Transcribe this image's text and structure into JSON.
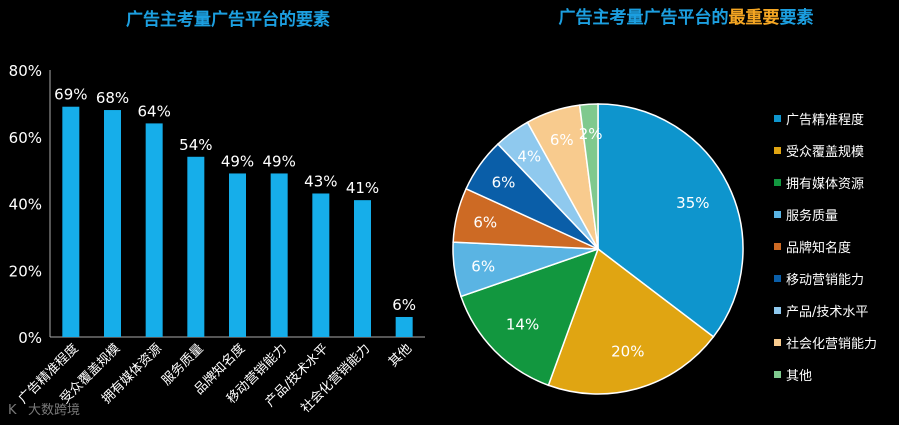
{
  "chart_data": [
    {
      "type": "bar",
      "title": "广告主考量广告平台的要素",
      "categories": [
        "广告精准程度",
        "受众覆盖规模",
        "拥有媒体资源",
        "服务质量",
        "品牌知名度",
        "移动营销能力",
        "产品/技术水平",
        "社会化营销能力",
        "其他"
      ],
      "values": [
        69,
        68,
        64,
        54,
        49,
        49,
        43,
        41,
        6
      ],
      "data_labels": [
        "69%",
        "68%",
        "64%",
        "54%",
        "49%",
        "49%",
        "43%",
        "41%",
        "6%"
      ],
      "ylim": [
        0,
        80
      ],
      "yticks": [
        "0%",
        "20%",
        "40%",
        "60%",
        "80%"
      ],
      "color": "#16AEEA",
      "grid": false
    },
    {
      "type": "pie",
      "title_parts": [
        {
          "text": "广告主考量广告平台的",
          "color": "#1C9FE0"
        },
        {
          "text": "最重要",
          "color": "#F5A623"
        },
        {
          "text": "要素",
          "color": "#1C9FE0"
        }
      ],
      "labels": [
        "广告精准程度",
        "受众覆盖规模",
        "拥有媒体资源",
        "服务质量",
        "品牌知名度",
        "移动营销能力",
        "产品/技术水平",
        "社会化营销能力",
        "其他"
      ],
      "values": [
        35,
        20,
        14,
        6,
        6,
        6,
        4,
        6,
        2
      ],
      "data_labels": [
        "35%",
        "20%",
        "14%",
        "6%",
        "6%",
        "6%",
        "4%",
        "6%",
        "2%"
      ],
      "colors": [
        "#0E95CD",
        "#E0A512",
        "#12973F",
        "#5AB4E3",
        "#CD6A24",
        "#0A5EA8",
        "#8FC9EE",
        "#F8CB8E",
        "#7FC98E"
      ],
      "legend_position": "right"
    }
  ],
  "watermark": "大数跨境"
}
